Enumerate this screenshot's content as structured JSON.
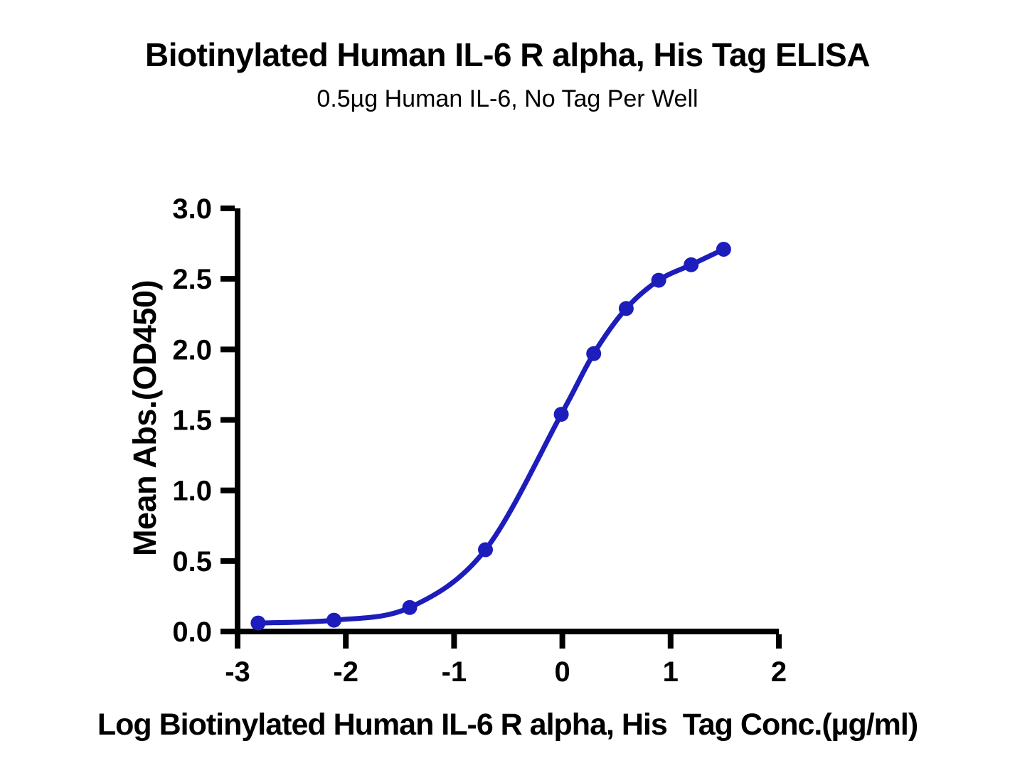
{
  "chart_data": {
    "type": "scatter",
    "title": "Biotinylated Human IL-6 R alpha, His Tag ELISA",
    "subtitle": "0.5µg Human IL-6, No Tag Per Well",
    "xlabel": "Log Biotinylated Human IL-6 R alpha, His  Tag Conc.(µg/ml)",
    "ylabel": "Mean Abs.(OD450)",
    "xlim": [
      -3,
      2
    ],
    "ylim": [
      0,
      3
    ],
    "xticks": [
      -3,
      -2,
      -1,
      0,
      1,
      2
    ],
    "xtick_labels": [
      "-3",
      "-2",
      "-1",
      "0",
      "1",
      "2"
    ],
    "yticks": [
      0,
      0.5,
      1,
      1.5,
      2,
      2.5,
      3
    ],
    "ytick_labels": [
      "0.0",
      "0.5",
      "1.0",
      "1.5",
      "2.0",
      "2.5",
      "3.0"
    ],
    "grid": false,
    "legend": "none",
    "curve_fit": "4PL sigmoidal",
    "axis_color": "#000000",
    "series": [
      {
        "name": "Biotinylated Human IL-6 R alpha, His Tag",
        "color": "#1d1dbb",
        "marker": "circle",
        "x": [
          -2.81,
          -2.11,
          -1.41,
          -0.71,
          -0.01,
          0.29,
          0.59,
          0.89,
          1.19,
          1.49
        ],
        "y": [
          0.06,
          0.08,
          0.17,
          0.58,
          1.54,
          1.97,
          2.29,
          2.49,
          2.6,
          2.71
        ]
      }
    ]
  }
}
